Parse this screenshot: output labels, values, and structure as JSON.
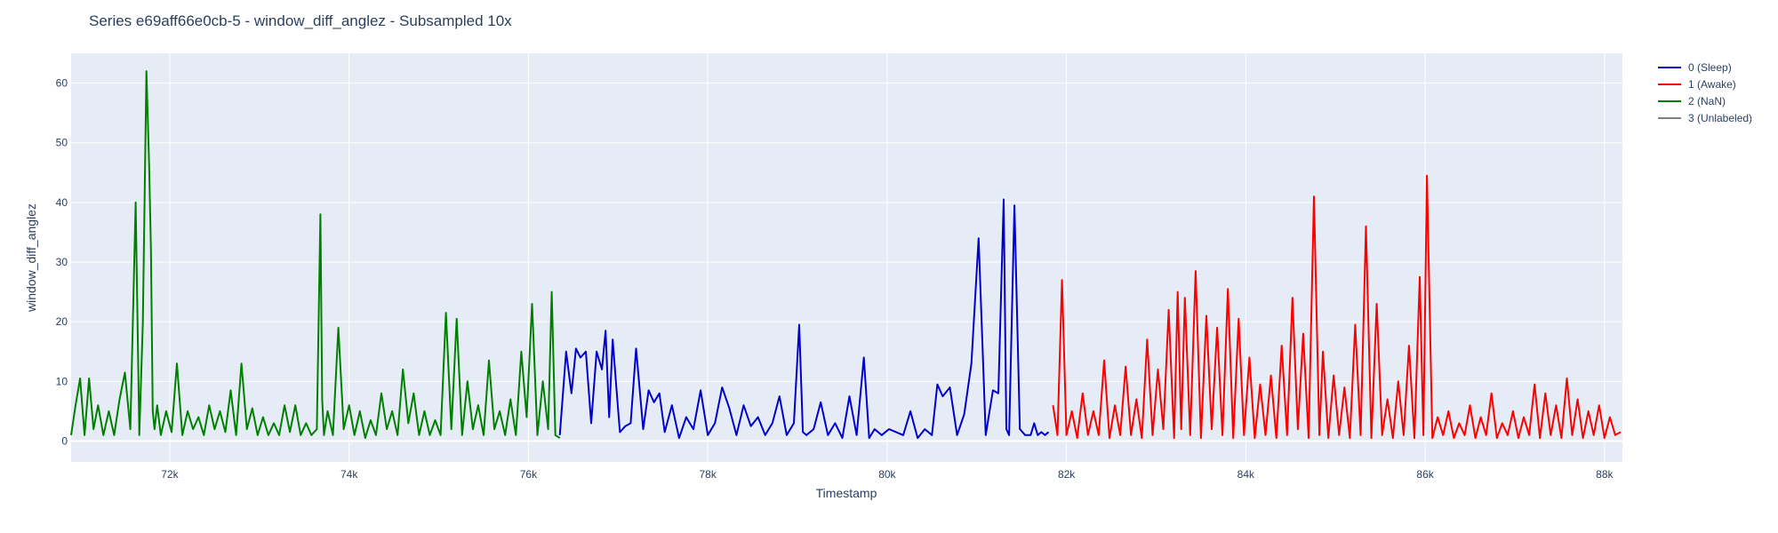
{
  "chart_data": {
    "type": "line",
    "title": "Series e69aff66e0cb-5 - window_diff_anglez - Subsampled 10x",
    "xlabel": "Timestamp",
    "ylabel": "window_diff_anglez",
    "xlim": [
      70900,
      88200
    ],
    "ylim": [
      -3.5,
      65
    ],
    "x_ticks": [
      72000,
      74000,
      76000,
      78000,
      80000,
      82000,
      84000,
      86000,
      88000
    ],
    "x_tick_labels": [
      "72k",
      "74k",
      "76k",
      "78k",
      "80k",
      "82k",
      "84k",
      "86k",
      "88k"
    ],
    "y_ticks": [
      0,
      10,
      20,
      30,
      40,
      50,
      60
    ],
    "y_tick_labels": [
      "0",
      "10",
      "20",
      "30",
      "40",
      "50",
      "60"
    ],
    "grid": true,
    "legend_position": "top-right",
    "series": [
      {
        "name": "0 (Sleep)",
        "color": "#0000cc",
        "x": [
          76350,
          76420,
          76480,
          76530,
          76580,
          76640,
          76700,
          76760,
          76820,
          76860,
          76900,
          76940,
          76980,
          77020,
          77080,
          77140,
          77200,
          77280,
          77340,
          77400,
          77460,
          77520,
          77600,
          77680,
          77760,
          77840,
          77920,
          78000,
          78080,
          78160,
          78240,
          78320,
          78400,
          78480,
          78560,
          78640,
          78720,
          78800,
          78880,
          78960,
          79020,
          79060,
          79100,
          79180,
          79260,
          79340,
          79420,
          79500,
          79580,
          79660,
          79740,
          79800,
          79860,
          79940,
          80020,
          80100,
          80180,
          80260,
          80340,
          80420,
          80500,
          80560,
          80620,
          80700,
          80780,
          80860,
          80940,
          81020,
          81100,
          81180,
          81240,
          81300,
          81330,
          81360,
          81420,
          81480,
          81540,
          81600,
          81640,
          81680,
          81720,
          81760,
          81800
        ],
        "values": [
          1.0,
          15.0,
          8.0,
          15.5,
          14.0,
          15.0,
          3.0,
          15.0,
          12.0,
          18.5,
          4.0,
          17.0,
          9.0,
          1.5,
          2.5,
          3.0,
          15.5,
          2.0,
          8.5,
          6.5,
          8.0,
          1.5,
          6.0,
          0.5,
          4.0,
          2.0,
          8.5,
          1.0,
          3.0,
          9.0,
          5.5,
          1.0,
          6.0,
          2.5,
          4.0,
          1.0,
          3.0,
          7.5,
          1.0,
          3.0,
          19.5,
          1.5,
          1.0,
          2.0,
          6.5,
          1.0,
          3.0,
          0.5,
          7.5,
          1.0,
          14.0,
          0.5,
          2.0,
          1.0,
          2.0,
          1.5,
          1.0,
          5.0,
          0.5,
          2.0,
          1.0,
          9.5,
          7.5,
          9.0,
          1.0,
          4.5,
          13.0,
          34.0,
          1.0,
          8.5,
          8.0,
          40.5,
          2.0,
          1.0,
          39.5,
          2.0,
          1.0,
          1.0,
          3.0,
          1.0,
          1.5,
          1.0,
          1.5
        ]
      },
      {
        "name": "1 (Awake)",
        "color": "#ff0000",
        "x": [
          81850,
          81900,
          81950,
          82000,
          82060,
          82120,
          82180,
          82240,
          82300,
          82360,
          82420,
          82480,
          82540,
          82600,
          82660,
          82720,
          82780,
          82840,
          82900,
          82960,
          83020,
          83080,
          83140,
          83200,
          83240,
          83280,
          83320,
          83380,
          83440,
          83500,
          83560,
          83620,
          83680,
          83740,
          83800,
          83860,
          83920,
          83980,
          84040,
          84100,
          84160,
          84220,
          84280,
          84340,
          84400,
          84460,
          84520,
          84580,
          84640,
          84700,
          84760,
          84820,
          84860,
          84920,
          84980,
          85040,
          85100,
          85160,
          85220,
          85280,
          85340,
          85400,
          85460,
          85520,
          85580,
          85640,
          85700,
          85760,
          85820,
          85880,
          85940,
          85980,
          86020,
          86080,
          86140,
          86200,
          86260,
          86320,
          86380,
          86440,
          86500,
          86560,
          86620,
          86680,
          86740,
          86800,
          86860,
          86920,
          86980,
          87040,
          87100,
          87160,
          87220,
          87280,
          87340,
          87400,
          87460,
          87520,
          87580,
          87640,
          87700,
          87760,
          87820,
          87880,
          87940,
          88000,
          88060,
          88120,
          88180
        ],
        "values": [
          6.0,
          1.0,
          27.0,
          1.0,
          5.0,
          0.5,
          8.0,
          1.0,
          5.0,
          1.0,
          13.5,
          0.5,
          6.0,
          1.0,
          12.5,
          1.0,
          7.0,
          0.5,
          17.0,
          1.0,
          12.0,
          2.0,
          22.0,
          0.5,
          25.0,
          2.0,
          24.0,
          1.0,
          28.5,
          0.5,
          21.0,
          2.0,
          19.0,
          1.0,
          25.5,
          0.5,
          20.5,
          1.0,
          14.0,
          0.5,
          9.5,
          1.0,
          11.0,
          0.5,
          16.0,
          1.0,
          24.0,
          2.0,
          18.0,
          0.5,
          41.0,
          1.0,
          15.0,
          0.5,
          11.0,
          1.0,
          9.0,
          0.5,
          19.5,
          1.0,
          36.0,
          0.5,
          23.0,
          1.0,
          7.0,
          0.5,
          10.0,
          1.0,
          16.0,
          0.5,
          27.5,
          1.0,
          44.5,
          0.5,
          4.0,
          1.0,
          5.0,
          0.5,
          3.0,
          1.0,
          6.0,
          0.5,
          4.0,
          1.0,
          8.0,
          0.5,
          3.0,
          1.0,
          5.0,
          0.5,
          4.0,
          1.0,
          9.5,
          0.5,
          8.0,
          1.0,
          6.0,
          0.5,
          10.5,
          1.0,
          7.0,
          0.5,
          5.0,
          1.0,
          6.0,
          0.5,
          4.0,
          1.0,
          1.5
        ]
      },
      {
        "name": "2 (NaN)",
        "color": "#008000",
        "x": [
          70900,
          70950,
          71000,
          71050,
          71100,
          71150,
          71200,
          71260,
          71320,
          71380,
          71440,
          71500,
          71560,
          71620,
          71660,
          71700,
          71740,
          71770,
          71790,
          71810,
          71830,
          71860,
          71900,
          71960,
          72020,
          72080,
          72140,
          72200,
          72260,
          72320,
          72380,
          72440,
          72500,
          72560,
          72620,
          72680,
          72740,
          72800,
          72860,
          72920,
          72980,
          73040,
          73100,
          73160,
          73220,
          73280,
          73340,
          73400,
          73460,
          73520,
          73580,
          73640,
          73680,
          73700,
          73720,
          73760,
          73820,
          73880,
          73940,
          74000,
          74060,
          74120,
          74180,
          74240,
          74300,
          74360,
          74420,
          74480,
          74540,
          74600,
          74660,
          74720,
          74780,
          74840,
          74900,
          74960,
          75020,
          75080,
          75140,
          75200,
          75260,
          75320,
          75380,
          75440,
          75500,
          75560,
          75620,
          75680,
          75740,
          75800,
          75860,
          75920,
          75980,
          76040,
          76100,
          76160,
          76220,
          76260,
          76300,
          76350
        ],
        "values": [
          1.0,
          6.0,
          10.5,
          1.0,
          10.5,
          2.0,
          6.0,
          1.0,
          5.0,
          1.0,
          7.0,
          11.5,
          2.0,
          40.0,
          1.0,
          20.0,
          62.0,
          46.0,
          32.0,
          5.0,
          2.0,
          6.0,
          1.0,
          5.0,
          1.5,
          13.0,
          1.0,
          5.0,
          2.0,
          4.0,
          1.0,
          6.0,
          2.0,
          5.0,
          1.5,
          8.5,
          1.0,
          13.0,
          2.0,
          5.5,
          1.0,
          4.0,
          1.0,
          3.0,
          1.0,
          6.0,
          1.5,
          6.0,
          1.0,
          3.0,
          1.0,
          2.0,
          38.0,
          7.0,
          1.0,
          5.0,
          1.0,
          19.0,
          2.0,
          6.0,
          1.0,
          5.0,
          0.5,
          3.5,
          1.0,
          8.0,
          2.0,
          5.0,
          1.0,
          12.0,
          3.0,
          8.0,
          1.0,
          5.0,
          1.0,
          3.5,
          1.0,
          21.5,
          2.0,
          20.5,
          1.0,
          10.0,
          2.0,
          6.0,
          1.0,
          13.5,
          2.0,
          5.0,
          1.0,
          7.0,
          1.0,
          15.0,
          4.0,
          23.0,
          1.0,
          10.0,
          2.0,
          25.0,
          1.0,
          0.5
        ]
      },
      {
        "name": "3 (Unlabeled)",
        "color": "#808080",
        "x": [],
        "values": []
      }
    ]
  }
}
